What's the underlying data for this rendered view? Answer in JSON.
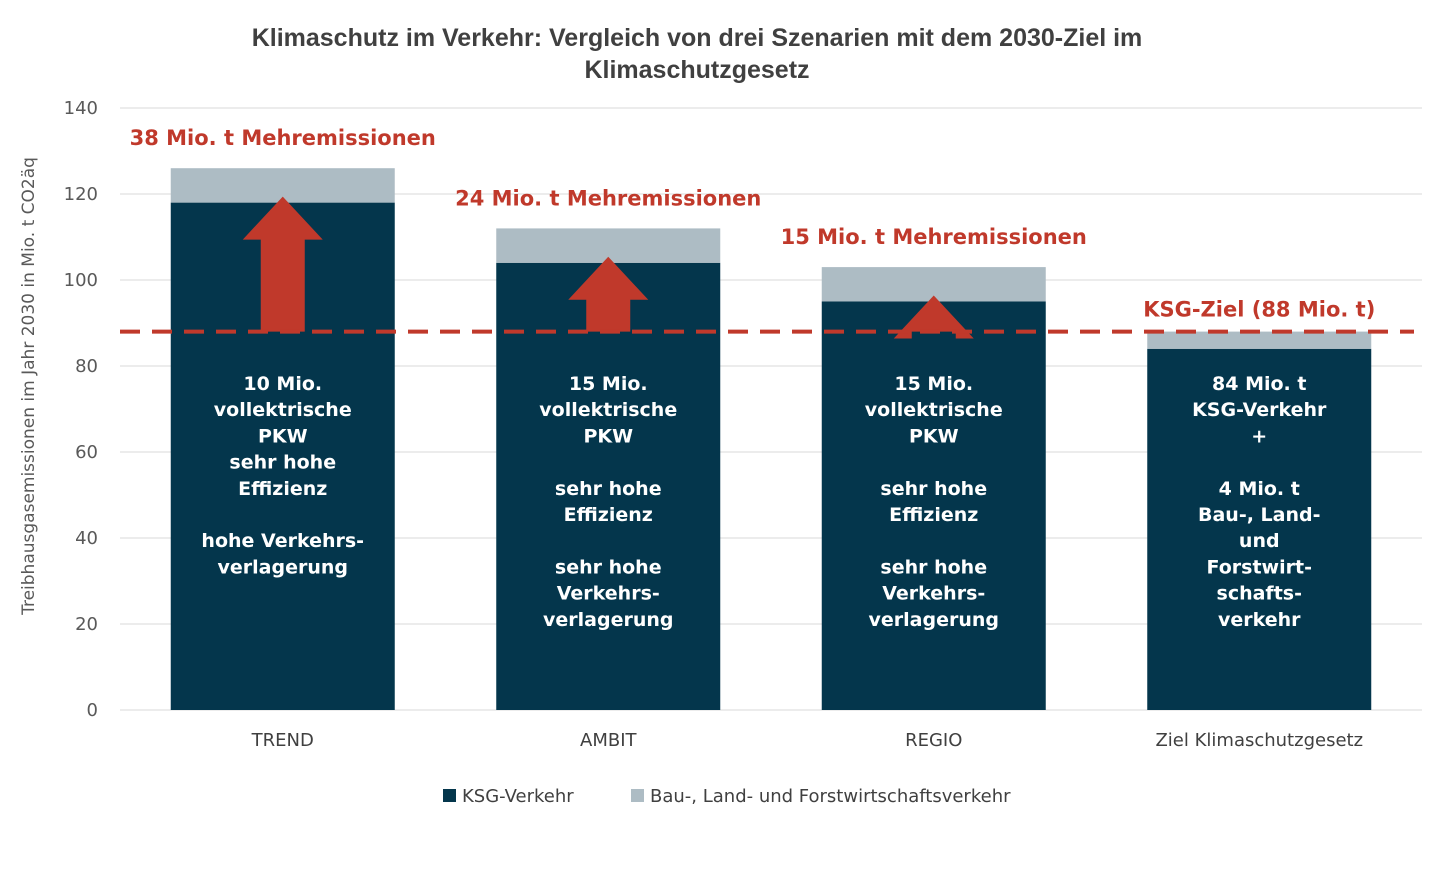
{
  "chart_data": {
    "type": "bar",
    "stacked": true,
    "title_line1": "Klimaschutz im Verkehr: Vergleich von drei Szenarien mit dem 2030-Ziel im",
    "title_line2": "Klimaschutzgesetz",
    "ylabel": "Treibhausgasemissionen im Jahr 2030 in Mio. t CO2äq",
    "xlabel": "",
    "ylim": [
      0,
      140
    ],
    "yticks": [
      0,
      20,
      40,
      60,
      80,
      100,
      120,
      140
    ],
    "grid": true,
    "legend_position": "bottom",
    "categories": [
      "TREND",
      "AMBIT",
      "REGIO",
      "Ziel Klimaschutzgesetz"
    ],
    "series": [
      {
        "name": "KSG-Verkehr",
        "color": "#04364c",
        "values": [
          118,
          104,
          95,
          84
        ]
      },
      {
        "name": "Bau-, Land- und Forstwirtschaftsverkehr",
        "color": "#adbcc4",
        "values": [
          8,
          8,
          8,
          4
        ]
      }
    ],
    "target_line": {
      "value": 88,
      "label": "KSG-Ziel (88 Mio. t)",
      "color": "#c0392b",
      "style": "dashed"
    },
    "excess_labels": [
      "38 Mio. t Mehremissionen",
      "24 Mio. t Mehremissionen",
      "15 Mio. t Mehremissionen"
    ],
    "arrows": {
      "color": "#c0392b",
      "from": 88
    },
    "bar_texts": [
      [
        "10 Mio.",
        "vollektrische",
        "PKW",
        "sehr hohe",
        "Effizienz",
        "",
        "hohe Verkehrs-",
        "verlagerung"
      ],
      [
        "15 Mio.",
        "vollektrische",
        "PKW",
        "",
        "sehr hohe",
        "Effizienz",
        "",
        "sehr hohe",
        "Verkehrs-",
        "verlagerung"
      ],
      [
        "15 Mio.",
        "vollektrische",
        "PKW",
        "",
        "sehr hohe",
        "Effizienz",
        "",
        "sehr hohe",
        "Verkehrs-",
        "verlagerung"
      ],
      [
        "84 Mio. t",
        "KSG-Verkehr",
        "+",
        "",
        "4 Mio. t",
        "Bau-, Land-",
        "und",
        "Forstwirt-",
        "schafts-",
        "verkehr"
      ]
    ]
  }
}
